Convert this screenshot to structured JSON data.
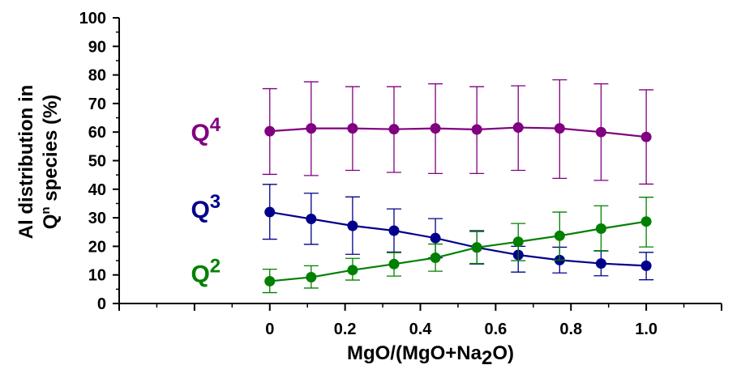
{
  "chart_data": {
    "type": "line",
    "title": "",
    "xlabel": {
      "main": "MgO/(MgO+Na",
      "sub": "2",
      "end": "O)"
    },
    "ylabel": {
      "line1": "Al distribution in",
      "line2_pre": "Q",
      "line2_sup": "n",
      "line2_post": " species (%)"
    },
    "xlim": [
      -0.4,
      1.2
    ],
    "ylim": [
      0,
      100
    ],
    "x_ticks": [
      0,
      0.2,
      0.4,
      0.6,
      0.8,
      1.0
    ],
    "x_tick_labels": [
      "0",
      "0.2",
      "0.4",
      "0.6",
      "0.8",
      "1.0"
    ],
    "y_ticks": [
      0,
      10,
      20,
      30,
      40,
      50,
      60,
      70,
      80,
      90,
      100
    ],
    "y_tick_labels": [
      "0",
      "10",
      "20",
      "30",
      "40",
      "50",
      "60",
      "70",
      "80",
      "90",
      "100"
    ],
    "grid": false,
    "x": [
      0,
      0.11,
      0.22,
      0.33,
      0.44,
      0.55,
      0.66,
      0.77,
      0.88,
      1.0
    ],
    "series": [
      {
        "name": "Q4",
        "label_base": "Q",
        "label_sup": "4",
        "label_at": [
          -0.17,
          57
        ],
        "color": "#800080",
        "values": [
          60.3,
          61.3,
          61.3,
          61.0,
          61.3,
          60.9,
          61.6,
          61.3,
          60.0,
          58.3
        ],
        "err_upper": [
          75.2,
          77.6,
          75.9,
          75.9,
          76.9,
          75.9,
          76.2,
          78.3,
          76.9,
          74.8
        ],
        "err_lower": [
          45.2,
          44.8,
          46.6,
          45.9,
          45.5,
          45.5,
          46.6,
          43.8,
          43.1,
          41.8
        ]
      },
      {
        "name": "Q3",
        "label_base": "Q",
        "label_sup": "3",
        "label_at": [
          -0.17,
          30
        ],
        "color": "#00008B",
        "values": [
          32.0,
          29.6,
          27.2,
          25.5,
          22.9,
          19.6,
          17.0,
          15.2,
          14.0,
          13.2
        ],
        "err_upper": [
          41.7,
          38.6,
          37.3,
          33.1,
          29.7,
          25.5,
          20.0,
          19.7,
          18.4,
          17.9
        ],
        "err_lower": [
          22.5,
          20.7,
          17.2,
          18.0,
          16.0,
          13.8,
          11.0,
          10.7,
          9.7,
          8.3
        ]
      },
      {
        "name": "Q2",
        "label_base": "Q",
        "label_sup": "2",
        "label_at": [
          -0.17,
          7.5
        ],
        "color": "#008000",
        "values": [
          7.8,
          9.2,
          11.7,
          13.8,
          16.0,
          19.6,
          21.6,
          23.7,
          26.2,
          28.7
        ],
        "err_upper": [
          12.0,
          13.2,
          15.8,
          17.8,
          20.8,
          25.2,
          28.0,
          32.0,
          34.2,
          37.2
        ],
        "err_lower": [
          3.8,
          5.4,
          8.2,
          9.6,
          11.3,
          14.0,
          15.0,
          15.2,
          18.5,
          19.8
        ]
      }
    ]
  }
}
